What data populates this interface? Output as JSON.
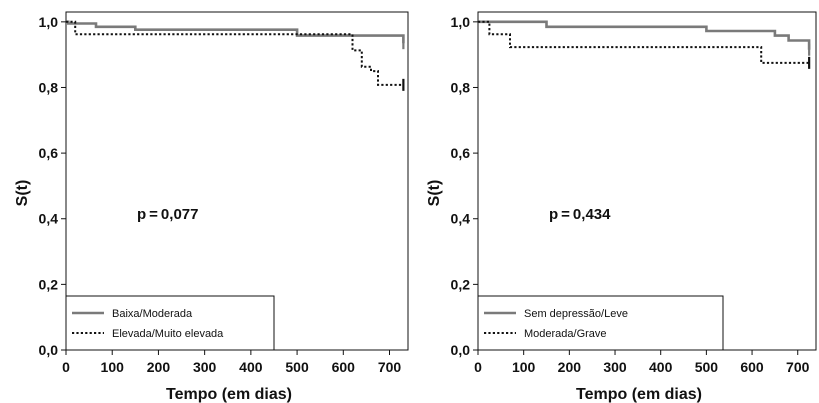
{
  "chart_data": [
    {
      "type": "line",
      "subtype": "kaplan-meier-step",
      "title": "",
      "xlabel": "Tempo (em dias)",
      "ylabel": "S(t)",
      "xlim": [
        0,
        740
      ],
      "ylim": [
        0.0,
        1.03
      ],
      "x_ticks": [
        0,
        100,
        200,
        300,
        400,
        500,
        600,
        700
      ],
      "x_tick_labels": [
        "0",
        "100",
        "200",
        "300",
        "400",
        "500",
        "600",
        "700"
      ],
      "y_ticks": [
        0.0,
        0.2,
        0.4,
        0.6,
        0.8,
        1.0
      ],
      "y_tick_labels": [
        "0,0",
        "0,2",
        "0,4",
        "0,6",
        "0,8",
        "1,0"
      ],
      "annotation": "p = 0,077",
      "legend_position": "bottom-left",
      "series": [
        {
          "name": "Baixa/Moderada",
          "style": "solid",
          "color": "#7a7a7a",
          "x": [
            0,
            5,
            5,
            65,
            65,
            150,
            150,
            500,
            500,
            730,
            730
          ],
          "y": [
            1.0,
            1.0,
            0.995,
            0.995,
            0.985,
            0.985,
            0.976,
            0.976,
            0.958,
            0.958,
            0.935
          ]
        },
        {
          "name": "Elevada/Muito elevada",
          "style": "dotted",
          "color": "#111111",
          "x": [
            0,
            20,
            20,
            620,
            620,
            640,
            640,
            660,
            660,
            675,
            675,
            730
          ],
          "y": [
            1.0,
            1.0,
            0.962,
            0.962,
            0.913,
            0.913,
            0.863,
            0.863,
            0.85,
            0.85,
            0.808,
            0.808
          ]
        }
      ]
    },
    {
      "type": "line",
      "subtype": "kaplan-meier-step",
      "title": "",
      "xlabel": "Tempo (em dias)",
      "ylabel": "S(t)",
      "xlim": [
        0,
        740
      ],
      "ylim": [
        0.0,
        1.03
      ],
      "x_ticks": [
        0,
        100,
        200,
        300,
        400,
        500,
        600,
        700
      ],
      "x_tick_labels": [
        "0",
        "100",
        "200",
        "300",
        "400",
        "500",
        "600",
        "700"
      ],
      "y_ticks": [
        0.0,
        0.2,
        0.4,
        0.6,
        0.8,
        1.0
      ],
      "y_tick_labels": [
        "0,0",
        "0,2",
        "0,4",
        "0,6",
        "0,8",
        "1,0"
      ],
      "annotation": "p = 0,434",
      "legend_position": "bottom-left",
      "series": [
        {
          "name": "Sem depressão/Leve",
          "style": "solid",
          "color": "#7a7a7a",
          "x": [
            0,
            150,
            150,
            500,
            500,
            650,
            650,
            680,
            680,
            725,
            725
          ],
          "y": [
            1.0,
            1.0,
            0.985,
            0.985,
            0.972,
            0.972,
            0.958,
            0.958,
            0.943,
            0.943,
            0.915
          ]
        },
        {
          "name": "Moderada/Grave",
          "style": "dotted",
          "color": "#111111",
          "x": [
            0,
            25,
            25,
            70,
            70,
            620,
            620,
            725
          ],
          "y": [
            1.0,
            1.0,
            0.962,
            0.962,
            0.923,
            0.923,
            0.875,
            0.875
          ]
        }
      ]
    }
  ]
}
